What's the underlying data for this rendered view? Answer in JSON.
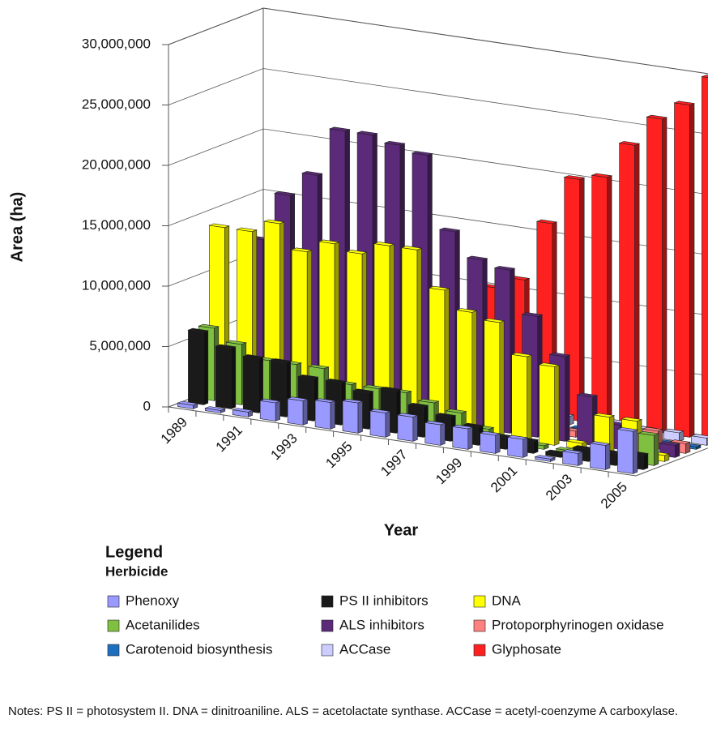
{
  "chart_data": {
    "type": "bar3d",
    "y_label": "Area (ha)",
    "x_label": "Year",
    "legend_title": "Legend",
    "legend_subtitle": "Herbicide",
    "notes": "Notes: PS II = photosystem II. DNA = dinitroaniline. ALS = acetolactate synthase. ACCase = acetyl-coenzyme A carboxylase.",
    "categories": [
      "1989",
      null,
      "1991",
      null,
      "1993",
      null,
      "1995",
      null,
      "1997",
      null,
      "1999",
      null,
      "2001",
      null,
      "2003",
      null,
      "2005"
    ],
    "ylim": [
      0,
      30000000
    ],
    "yticks": [
      0,
      {
        "value": 5000000,
        "label": "5,000,000"
      },
      {
        "value": 10000000,
        "label": "10,000,000"
      },
      {
        "value": 15000000,
        "label": "15,000,000"
      },
      {
        "value": 20000000,
        "label": "20,000,000"
      },
      {
        "value": 25000000,
        "label": "25,000,000"
      },
      {
        "value": 30000000,
        "label": "30,000,000"
      }
    ],
    "grid": true,
    "series": [
      {
        "name": "Phenoxy",
        "color": "#9999ff",
        "values": [
          300000,
          200000,
          400000,
          1500000,
          2000000,
          2200000,
          2500000,
          2000000,
          2000000,
          1700000,
          1700000,
          1500000,
          1500000,
          200000,
          1000000,
          2000000,
          3500000
        ]
      },
      {
        "name": "PS II inhibitors",
        "color": "#1a1a1a",
        "values": [
          6000000,
          5000000,
          4500000,
          4500000,
          3500000,
          3500000,
          3000000,
          3500000,
          2500000,
          2000000,
          1500000,
          1000000,
          1000000,
          300000,
          1000000,
          1000000,
          1200000
        ]
      },
      {
        "name": "Acetanilides",
        "color": "#80c040",
        "values": [
          6000000,
          5000000,
          4000000,
          4000000,
          4000000,
          3000000,
          3000000,
          3000000,
          2500000,
          2000000,
          1000000,
          300000,
          300000,
          200000,
          300000,
          500000,
          2500000
        ]
      },
      {
        "name": "DNA",
        "color": "#ffff00",
        "values": [
          14000000,
          14000000,
          15000000,
          13000000,
          14000000,
          13500000,
          14500000,
          14500000,
          11500000,
          10000000,
          9500000,
          7000000,
          6500000,
          500000,
          3000000,
          3000000,
          500000
        ]
      },
      {
        "name": "ALS inhibitors",
        "color": "#5b2a78",
        "values": [
          1000000,
          13000000,
          17000000,
          19000000,
          23000000,
          23000000,
          22500000,
          22000000,
          16000000,
          14000000,
          13500000,
          10000000,
          7000000,
          4000000,
          2000000,
          1500000,
          1000000
        ]
      },
      {
        "name": "Protoporphyrinogen oxidase",
        "color": "#ff8080",
        "values": [
          300000,
          500000,
          800000,
          1000000,
          1200000,
          1200000,
          1000000,
          1000000,
          800000,
          600000,
          500000,
          500000,
          500000,
          400000,
          300000,
          1500000,
          800000
        ]
      },
      {
        "name": "Carotenoid biosynthesis",
        "color": "#1f6fbf",
        "values": [
          200000,
          200000,
          300000,
          300000,
          300000,
          300000,
          300000,
          300000,
          300000,
          300000,
          300000,
          300000,
          300000,
          200000,
          200000,
          200000,
          200000
        ]
      },
      {
        "name": "ACCase",
        "color": "#ccccff",
        "values": [
          500000,
          600000,
          800000,
          1000000,
          1000000,
          1000000,
          1000000,
          1000000,
          900000,
          800000,
          700000,
          700000,
          700000,
          800000,
          600000,
          700000,
          600000
        ]
      },
      {
        "name": "Glyphosate",
        "color": "#ff2020",
        "values": [
          100000,
          200000,
          300000,
          500000,
          800000,
          1500000,
          4000000,
          6000000,
          10000000,
          11000000,
          16000000,
          20000000,
          20500000,
          23500000,
          26000000,
          27500000,
          30000000
        ]
      }
    ]
  }
}
